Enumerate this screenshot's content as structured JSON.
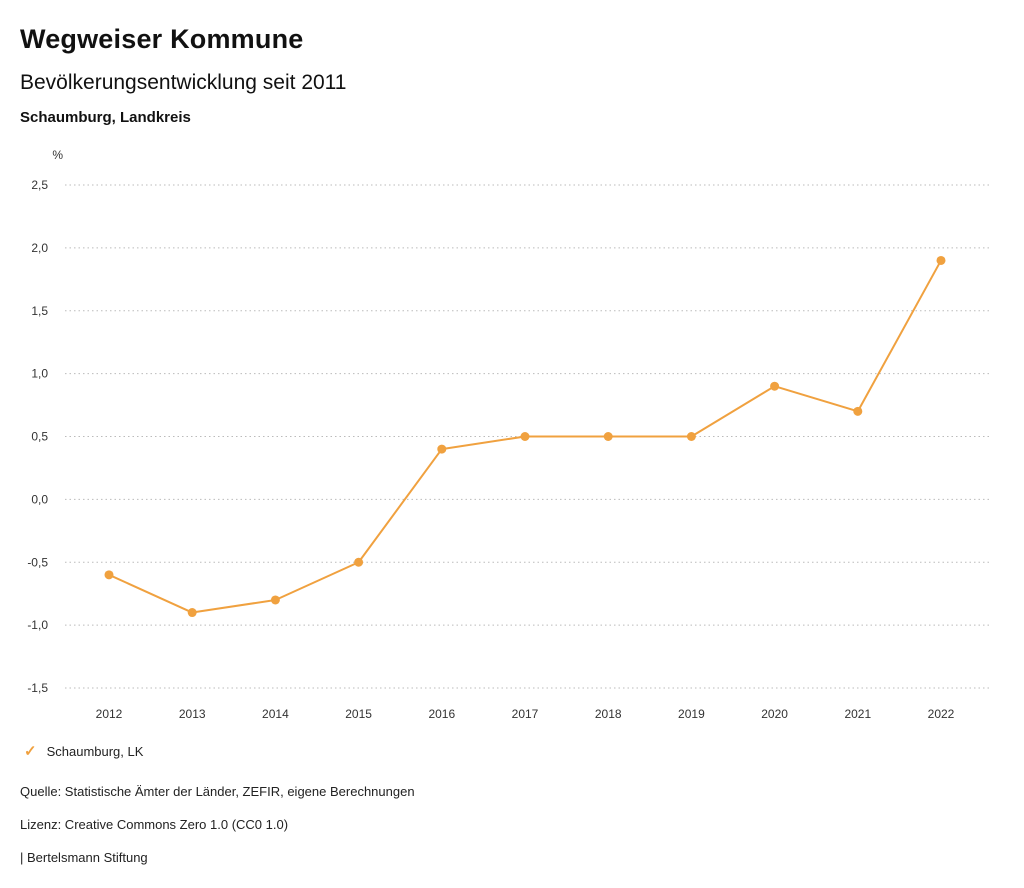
{
  "header": {
    "title": "Wegweiser Kommune",
    "subtitle": "Bevölkerungsentwicklung seit 2011",
    "region": "Schaumburg, Landkreis"
  },
  "chart_data": {
    "type": "line",
    "title": "Bevölkerungsentwicklung seit 2011",
    "unit_label": "%",
    "categories": [
      "2012",
      "2013",
      "2014",
      "2015",
      "2016",
      "2017",
      "2018",
      "2019",
      "2020",
      "2021",
      "2022"
    ],
    "series": [
      {
        "name": "Schaumburg, LK",
        "values": [
          -0.6,
          -0.9,
          -0.8,
          -0.5,
          0.4,
          0.5,
          0.5,
          0.5,
          0.9,
          0.7,
          1.9
        ],
        "color": "#f0a13f"
      }
    ],
    "ylim": [
      -1.5,
      2.5
    ],
    "ytick_step": 0.5,
    "ytick_labels": [
      "2,5",
      "2,0",
      "1,5",
      "1,0",
      "0,5",
      "0,0",
      "-0,5",
      "-1,0",
      "-1,5"
    ],
    "grid": true,
    "grid_color": "#bbbbbb",
    "legend_position": "bottom"
  },
  "legend": {
    "check_icon": "✓",
    "items": [
      {
        "label": "Schaumburg, LK",
        "color": "#f0a13f"
      }
    ]
  },
  "footer": {
    "source": "Quelle: Statistische Ämter der Länder, ZEFIR, eigene Berechnungen",
    "license": "Lizenz: Creative Commons Zero 1.0 (CC0 1.0)",
    "publisher": "| Bertelsmann Stiftung"
  }
}
